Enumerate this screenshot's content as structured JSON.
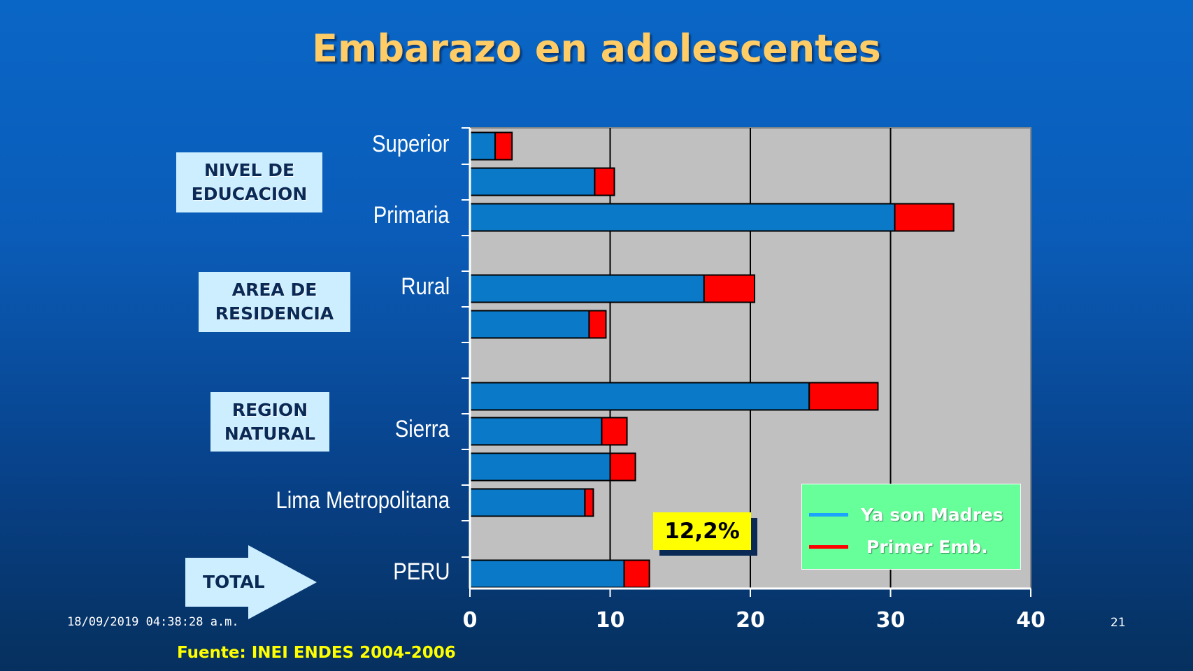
{
  "slide": {
    "title": "Embarazo en adolescentes",
    "datetime": "18/09/2019 04:38:28 a.m.",
    "slide_number": "21",
    "source": "Fuente: INEI ENDES 2004-2006",
    "callout": "12,2%"
  },
  "groups": [
    {
      "label_line1": "NIVEL DE",
      "label_line2": "EDUCACION"
    },
    {
      "label_line1": "AREA DE",
      "label_line2": "RESIDENCIA"
    },
    {
      "label_line1": "REGION",
      "label_line2": "NATURAL"
    },
    {
      "label_line1": "TOTAL",
      "label_line2": ""
    }
  ],
  "colors": {
    "madres": "#0a7ac8",
    "primer_emb": "#ff0000",
    "plot_bg": "#c0c0c0",
    "legend_bg": "#66ff99",
    "title": "#ffcc66"
  },
  "chart_data": {
    "type": "bar",
    "orientation": "horizontal",
    "stacked": true,
    "categories": [
      "Superior",
      "",
      "Primaria",
      "Rural",
      "",
      "",
      "Sierra",
      "",
      "Lima Metropolitana",
      "PERU"
    ],
    "series": [
      {
        "name": "Ya son Madres",
        "values": [
          1.8,
          8.9,
          30.3,
          16.7,
          8.5,
          24.2,
          9.4,
          10.0,
          8.2,
          11.0
        ]
      },
      {
        "name": "Primer Emb.",
        "values": [
          1.2,
          1.4,
          4.2,
          3.6,
          1.2,
          4.9,
          1.8,
          1.8,
          0.6,
          1.8
        ]
      }
    ],
    "xlim": [
      0,
      40
    ],
    "xticks": [
      "0",
      "10",
      "20",
      "30",
      "40"
    ],
    "grid": true,
    "legend_position": "bottom-right"
  }
}
